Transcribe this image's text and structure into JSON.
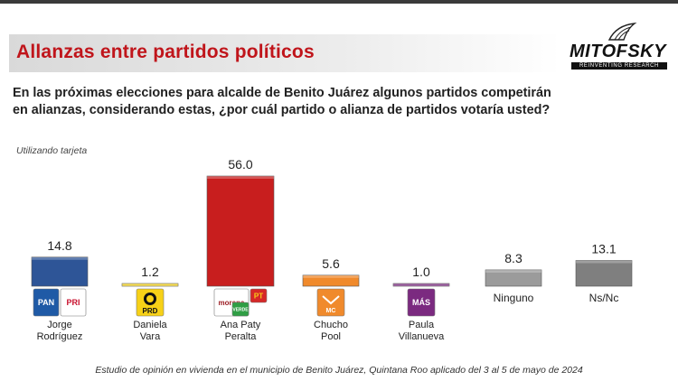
{
  "header": {
    "title": "Allanzas entre partidos políticos",
    "logo_text": "MITOFSKY",
    "logo_tagline": "REINVENTING RESEARCH"
  },
  "question": "En las próximas elecciones para alcalde de Benito Juárez algunos partidos competirán en alianzas, considerando estas, ¿por cuál partido o alianza de partidos votaría usted?",
  "note": "Utilizando tarjeta",
  "footer": "Estudio de opinión en vivienda en el municipio de Benito Juárez, Quintana Roo aplicado del 3 al 5 de mayo de 2024",
  "chart_data": {
    "type": "bar",
    "categories": [
      "Jorge Rodríguez",
      "Daniela Vara",
      "Ana Paty Peralta",
      "Chucho Pool",
      "Paula Villanueva",
      "Ninguno",
      "Ns/Nc"
    ],
    "values": [
      14.8,
      1.2,
      56.0,
      5.6,
      1.0,
      8.3,
      13.1
    ],
    "value_labels": [
      "14.8",
      "1.2",
      "56.0",
      "5.6",
      "1.0",
      "8.3",
      "13.1"
    ],
    "colors": [
      "#2e5597",
      "#f4d21a",
      "#c81e1e",
      "#f08a2c",
      "#7b2a80",
      "#9b9b9b",
      "#7f7f7f"
    ],
    "candidates": [
      {
        "name_line1": "Jorge",
        "name_line2": "Rodríguez",
        "parties": [
          "PAN",
          "PRI"
        ]
      },
      {
        "name_line1": "Daniela",
        "name_line2": "Vara",
        "parties": [
          "PRD"
        ]
      },
      {
        "name_line1": "Ana Paty",
        "name_line2": "Peralta",
        "parties": [
          "morena",
          "PT",
          "VERDE"
        ]
      },
      {
        "name_line1": "Chucho",
        "name_line2": "Pool",
        "parties": [
          "MC"
        ]
      },
      {
        "name_line1": "Paula",
        "name_line2": "Villanueva",
        "parties": [
          "MÁS"
        ]
      },
      {
        "name_line1": "Ninguno",
        "name_line2": "",
        "parties": []
      },
      {
        "name_line1": "Ns/Nc",
        "name_line2": "",
        "parties": []
      }
    ],
    "ylim": [
      0,
      56
    ],
    "grid": false,
    "legend": "none"
  }
}
